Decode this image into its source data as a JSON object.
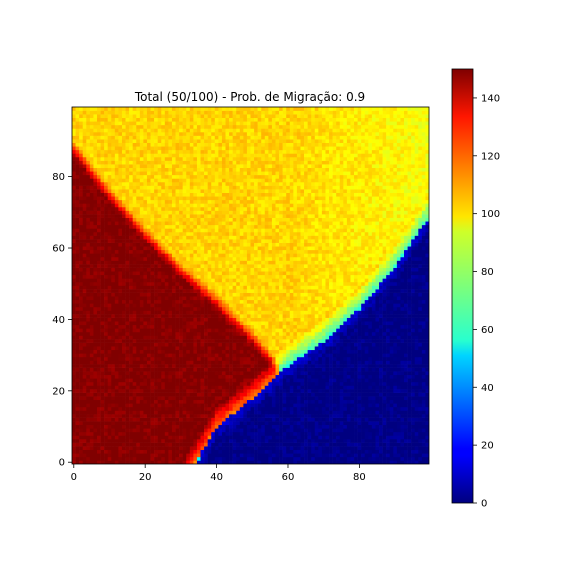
{
  "chart_data": {
    "type": "heatmap",
    "title": "Total (50/100) - Prob. de Migração: 0.9",
    "xlabel": "",
    "ylabel": "",
    "grid": false,
    "colormap": "jet",
    "x_range": [
      0,
      99
    ],
    "y_range": [
      0,
      99
    ],
    "x_ticks": [
      0,
      20,
      40,
      60,
      80
    ],
    "y_ticks": [
      0,
      20,
      40,
      60,
      80
    ],
    "colorbar": {
      "min": 0,
      "max": 150,
      "ticks": [
        0,
        20,
        40,
        60,
        80,
        100,
        120,
        140
      ]
    },
    "regions": [
      {
        "name": "high",
        "value": 150
      },
      {
        "name": "mid",
        "value": 100
      },
      {
        "name": "low",
        "value": 0
      }
    ],
    "boundaries": {
      "high_mid": [
        [
          0,
          88
        ],
        [
          10,
          75
        ],
        [
          20,
          64
        ],
        [
          30,
          54
        ],
        [
          40,
          45
        ],
        [
          50,
          35
        ],
        [
          57,
          27
        ]
      ],
      "mid_low": [
        [
          34,
          0
        ],
        [
          40,
          10
        ],
        [
          50,
          18
        ],
        [
          60,
          27
        ],
        [
          70,
          34
        ],
        [
          80,
          43
        ],
        [
          90,
          55
        ],
        [
          99,
          68
        ]
      ],
      "bottom_arc": [
        [
          33,
          0
        ],
        [
          36,
          8
        ],
        [
          42,
          15
        ],
        [
          50,
          20
        ],
        [
          57,
          27
        ]
      ]
    }
  }
}
